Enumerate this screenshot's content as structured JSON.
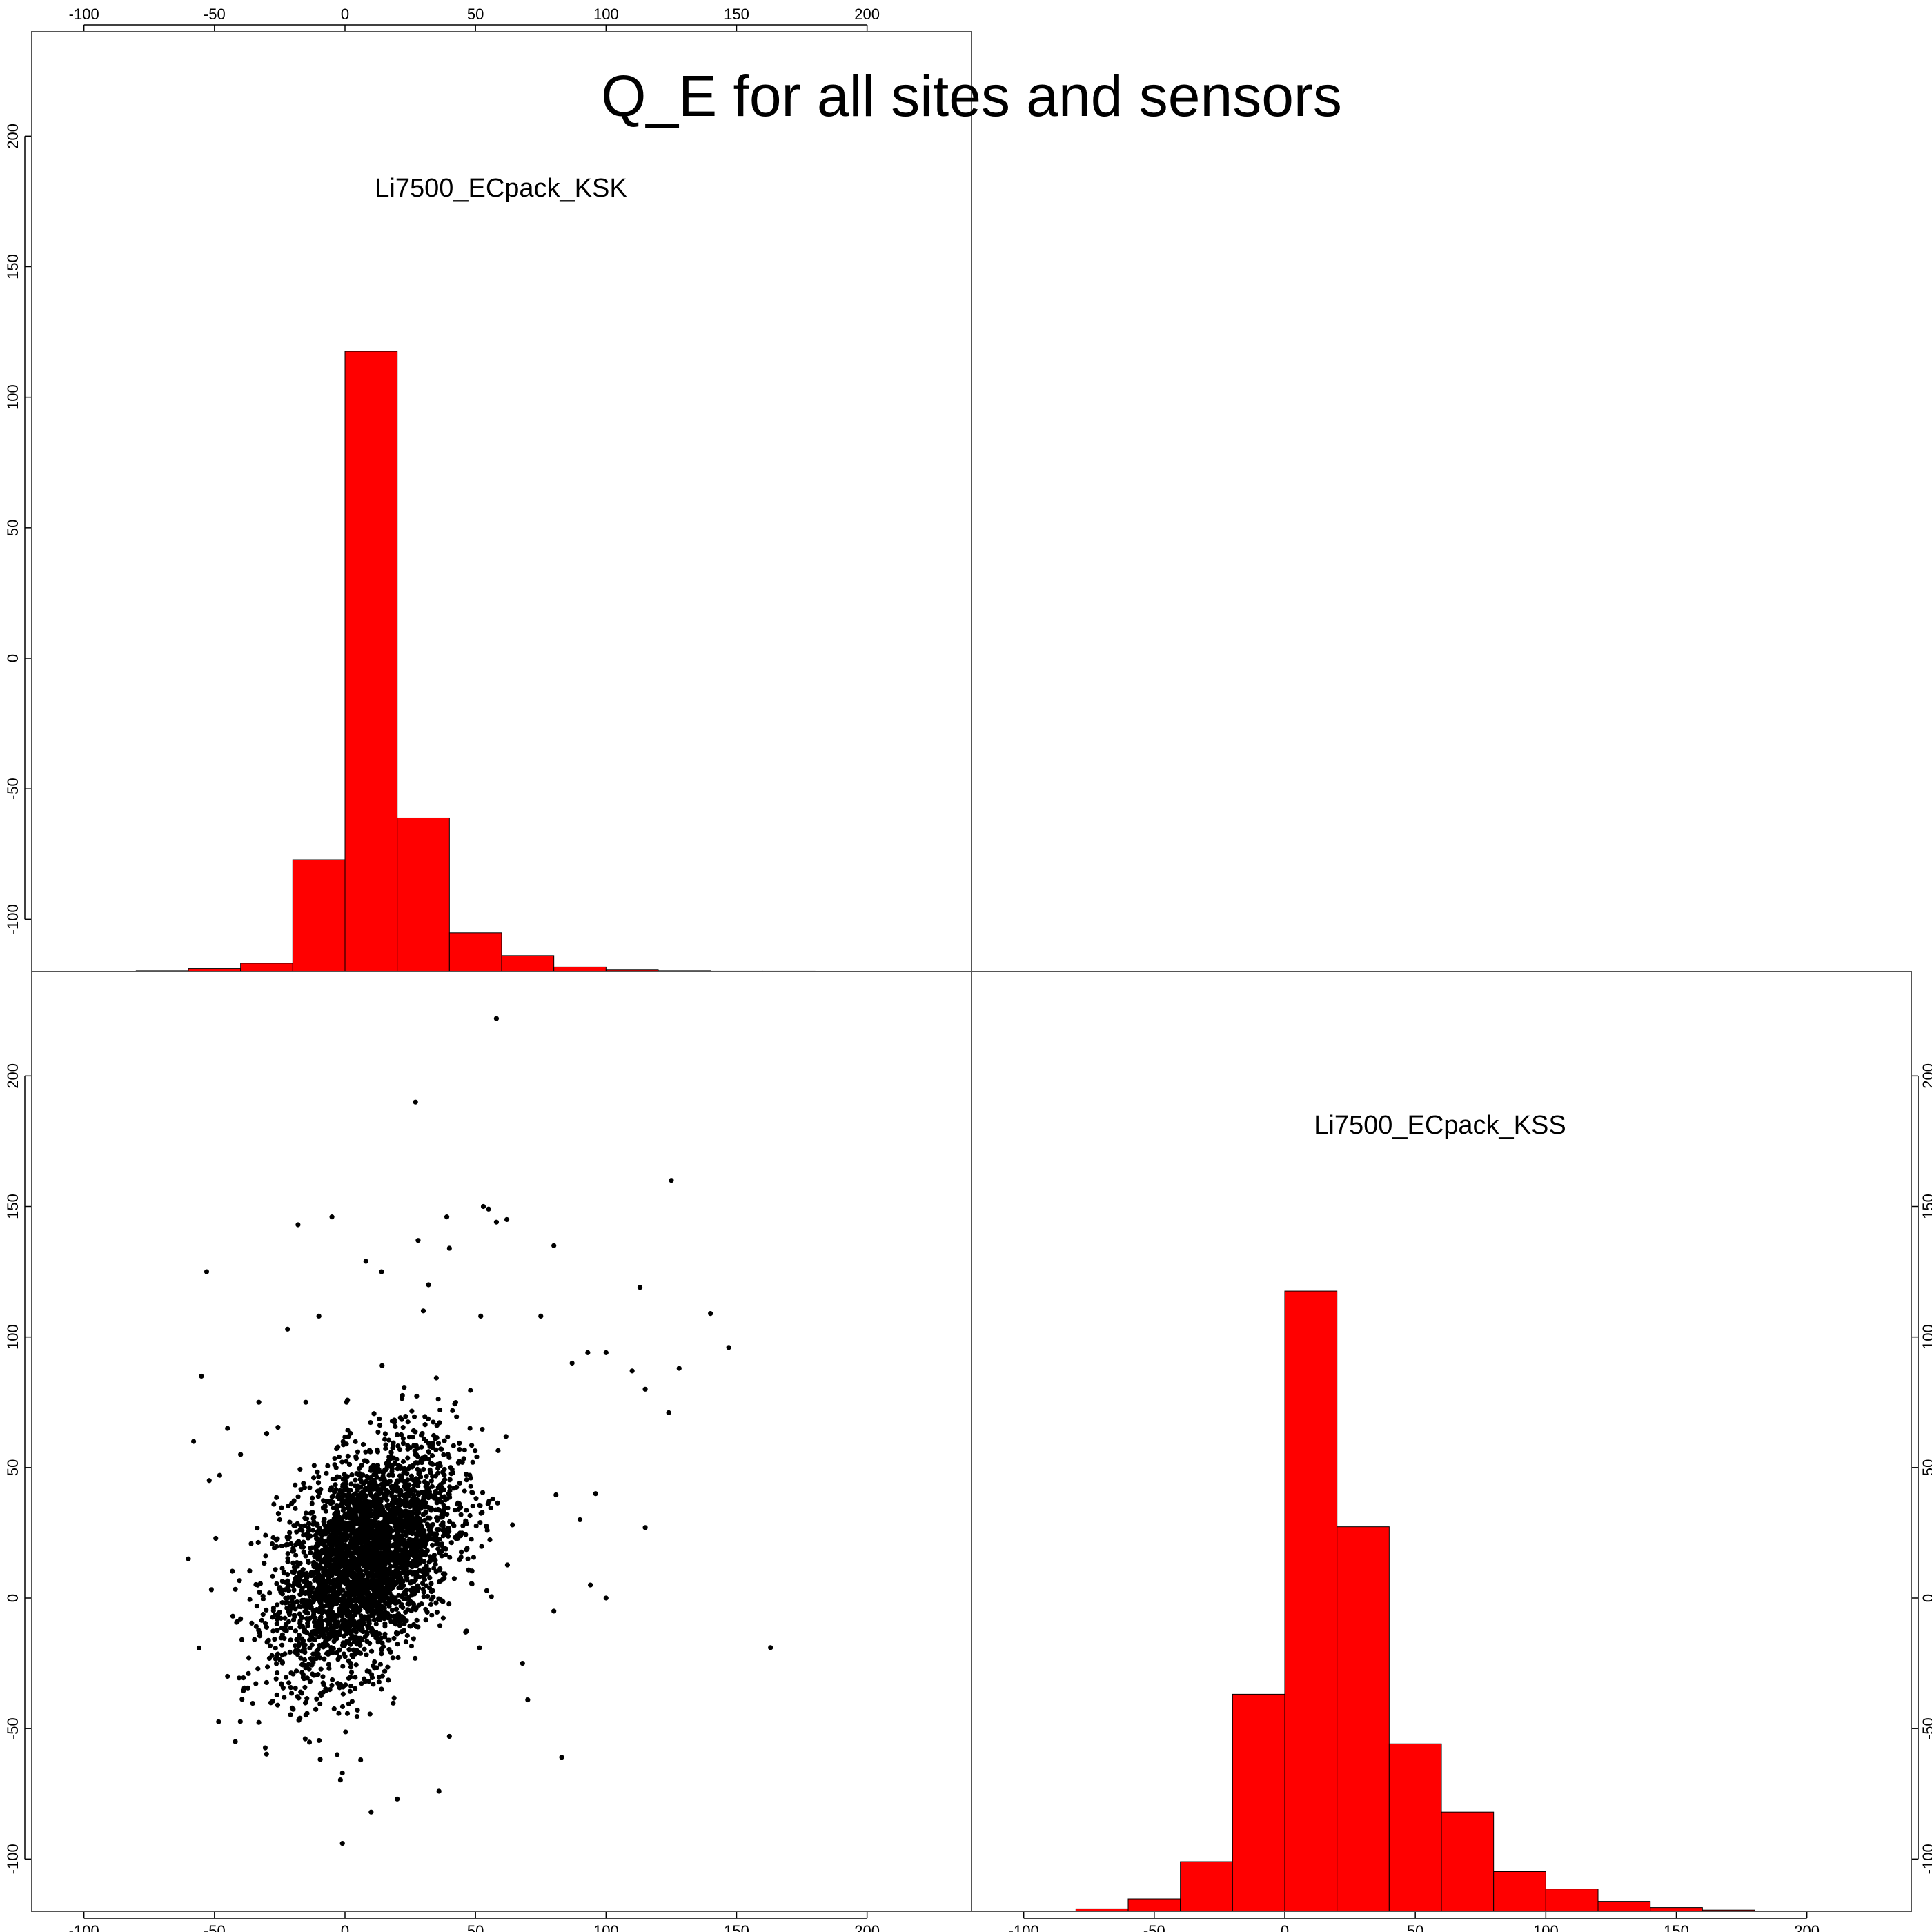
{
  "title": "Q_E for all sites and sensors",
  "colors": {
    "hist_fill": "#ff0000",
    "hist_stroke": "#000000",
    "point": "#000000",
    "frame": "#555555"
  },
  "chart_data": [
    {
      "type": "histogram",
      "panel": "top-left (diagonal)",
      "label": "Li7500_ECpack_KSK",
      "bin_width": 20,
      "bins": [
        {
          "from": -80,
          "to": -60,
          "count": 1
        },
        {
          "from": -60,
          "to": -40,
          "count": 4
        },
        {
          "from": -40,
          "to": -20,
          "count": 11
        },
        {
          "from": -20,
          "to": 0,
          "count": 147
        },
        {
          "from": 0,
          "to": 20,
          "count": 816
        },
        {
          "from": 20,
          "to": 40,
          "count": 202
        },
        {
          "from": 40,
          "to": 60,
          "count": 51
        },
        {
          "from": 60,
          "to": 80,
          "count": 21
        },
        {
          "from": 80,
          "to": 100,
          "count": 6
        },
        {
          "from": 100,
          "to": 120,
          "count": 2
        },
        {
          "from": 120,
          "to": 140,
          "count": 1
        },
        {
          "from": 140,
          "to": 160,
          "count": 0.5
        },
        {
          "from": 160,
          "to": 180,
          "count": 0.5
        }
      ],
      "xlim": [
        -120,
        240
      ],
      "x_ticks": [
        -100,
        -50,
        0,
        50,
        100,
        150,
        200
      ],
      "y_ticks": [
        -100,
        -50,
        0,
        50,
        100,
        150,
        200
      ]
    },
    {
      "type": "histogram",
      "panel": "bottom-right (diagonal)",
      "label": "Li7500_ECpack_KSS",
      "bin_width": 20,
      "bins": [
        {
          "from": -80,
          "to": -60,
          "count": 2
        },
        {
          "from": -60,
          "to": -40,
          "count": 10
        },
        {
          "from": -40,
          "to": -20,
          "count": 40
        },
        {
          "from": -20,
          "to": 0,
          "count": 175
        },
        {
          "from": 0,
          "to": 20,
          "count": 500
        },
        {
          "from": 20,
          "to": 40,
          "count": 310
        },
        {
          "from": 40,
          "to": 60,
          "count": 135
        },
        {
          "from": 60,
          "to": 80,
          "count": 80
        },
        {
          "from": 80,
          "to": 100,
          "count": 32
        },
        {
          "from": 100,
          "to": 120,
          "count": 18
        },
        {
          "from": 120,
          "to": 140,
          "count": 8
        },
        {
          "from": 140,
          "to": 160,
          "count": 3
        },
        {
          "from": 160,
          "to": 180,
          "count": 1
        }
      ],
      "xlim": [
        -120,
        240
      ],
      "x_ticks": [
        -100,
        -50,
        0,
        50,
        100,
        150,
        200
      ],
      "y_ticks": [
        -100,
        -50,
        0,
        50,
        100,
        150,
        200
      ]
    },
    {
      "type": "scatter",
      "panel": "bottom-left",
      "x_variable": "Li7500_ECpack_KSK",
      "y_variable": "Li7500_ECpack_KSS",
      "xlim": [
        -120,
        240
      ],
      "ylim": [
        -120,
        240
      ],
      "x_ticks": [
        -100,
        -50,
        0,
        50,
        100,
        150,
        200
      ],
      "y_ticks": [
        -100,
        -50,
        0,
        50,
        100,
        150,
        200
      ],
      "core_cluster": {
        "x_center": 8,
        "y_center": 15,
        "x_spread": 17,
        "y_spread": 22,
        "correlation": 0.45,
        "n_points": 3500
      },
      "outliers": [
        [
          58,
          222
        ],
        [
          27,
          190
        ],
        [
          125,
          160
        ],
        [
          53,
          150
        ],
        [
          55,
          149
        ],
        [
          58,
          144
        ],
        [
          62,
          145
        ],
        [
          -18,
          143
        ],
        [
          -5,
          146
        ],
        [
          39,
          146
        ],
        [
          80,
          135
        ],
        [
          -53,
          125
        ],
        [
          28,
          137
        ],
        [
          40,
          134
        ],
        [
          8,
          129
        ],
        [
          113,
          119
        ],
        [
          140,
          109
        ],
        [
          147,
          96
        ],
        [
          128,
          88
        ],
        [
          110,
          87
        ],
        [
          115,
          80
        ],
        [
          124,
          71
        ],
        [
          -58,
          60
        ],
        [
          -52,
          45
        ],
        [
          -45,
          65
        ],
        [
          -55,
          85
        ],
        [
          -48,
          47
        ],
        [
          -33,
          75
        ],
        [
          -40,
          55
        ],
        [
          -25,
          30
        ],
        [
          -60,
          15
        ],
        [
          -40,
          -8
        ],
        [
          -28,
          -22
        ],
        [
          -45,
          -30
        ],
        [
          -42,
          -55
        ],
        [
          -15,
          -40
        ],
        [
          -3,
          -60
        ],
        [
          -1,
          -67
        ],
        [
          6,
          -62
        ],
        [
          10,
          -82
        ],
        [
          -1,
          -94
        ],
        [
          20,
          -77
        ],
        [
          36,
          -74
        ],
        [
          40,
          -53
        ],
        [
          83,
          -61
        ],
        [
          70,
          -39
        ],
        [
          94,
          5
        ],
        [
          100,
          0
        ],
        [
          115,
          27
        ],
        [
          163,
          -19
        ],
        [
          68,
          -25
        ],
        [
          80,
          -5
        ],
        [
          96,
          40
        ],
        [
          90,
          30
        ],
        [
          100,
          94
        ],
        [
          93,
          94
        ],
        [
          87,
          90
        ],
        [
          75,
          108
        ],
        [
          52,
          108
        ],
        [
          32,
          120
        ],
        [
          30,
          110
        ],
        [
          14,
          125
        ],
        [
          -10,
          108
        ],
        [
          -22,
          103
        ],
        [
          -30,
          63
        ],
        [
          -15,
          75
        ]
      ]
    }
  ]
}
